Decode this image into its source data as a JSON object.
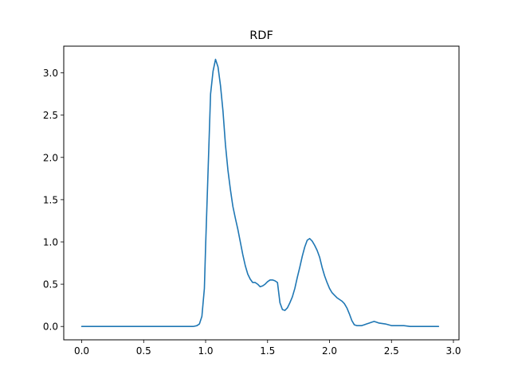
{
  "chart_data": {
    "type": "line",
    "title": "RDF",
    "xlabel": "",
    "ylabel": "",
    "xlim": [
      -0.145,
      3.045
    ],
    "ylim": [
      -0.158,
      3.316
    ],
    "xticks": [
      0.0,
      0.5,
      1.0,
      1.5,
      2.0,
      2.5,
      3.0
    ],
    "xtick_labels": [
      "0.0",
      "0.5",
      "1.0",
      "1.5",
      "2.0",
      "2.5",
      "3.0"
    ],
    "yticks": [
      0.0,
      0.5,
      1.0,
      1.5,
      2.0,
      2.5,
      3.0
    ],
    "ytick_labels": [
      "0.0",
      "0.5",
      "1.0",
      "1.5",
      "2.0",
      "2.5",
      "3.0"
    ],
    "grid": false,
    "legend": "none",
    "series": [
      {
        "color": "#1f77b4",
        "x": [
          0.0,
          0.2,
          0.4,
          0.6,
          0.8,
          0.9,
          0.93,
          0.95,
          0.97,
          0.99,
          1.0,
          1.02,
          1.04,
          1.06,
          1.08,
          1.1,
          1.12,
          1.14,
          1.16,
          1.18,
          1.2,
          1.22,
          1.24,
          1.26,
          1.28,
          1.3,
          1.32,
          1.34,
          1.36,
          1.38,
          1.4,
          1.42,
          1.44,
          1.46,
          1.48,
          1.5,
          1.52,
          1.54,
          1.56,
          1.58,
          1.6,
          1.62,
          1.64,
          1.66,
          1.68,
          1.7,
          1.72,
          1.74,
          1.76,
          1.78,
          1.8,
          1.82,
          1.84,
          1.86,
          1.88,
          1.9,
          1.92,
          1.94,
          1.96,
          1.98,
          2.0,
          2.02,
          2.04,
          2.06,
          2.08,
          2.1,
          2.12,
          2.14,
          2.16,
          2.18,
          2.2,
          2.22,
          2.24,
          2.26,
          2.28,
          2.3,
          2.32,
          2.34,
          2.36,
          2.38,
          2.4,
          2.45,
          2.5,
          2.55,
          2.6,
          2.65,
          2.7,
          2.75,
          2.8,
          2.85,
          2.88
        ],
        "y": [
          0.0,
          0.0,
          0.0,
          0.0,
          0.0,
          0.0,
          0.01,
          0.03,
          0.12,
          0.45,
          0.95,
          1.85,
          2.75,
          3.02,
          3.16,
          3.07,
          2.85,
          2.55,
          2.15,
          1.85,
          1.62,
          1.42,
          1.28,
          1.15,
          1.0,
          0.85,
          0.72,
          0.62,
          0.56,
          0.52,
          0.52,
          0.5,
          0.47,
          0.48,
          0.5,
          0.53,
          0.55,
          0.55,
          0.54,
          0.52,
          0.28,
          0.2,
          0.19,
          0.22,
          0.28,
          0.35,
          0.45,
          0.58,
          0.7,
          0.83,
          0.94,
          1.02,
          1.04,
          1.01,
          0.96,
          0.9,
          0.82,
          0.7,
          0.6,
          0.52,
          0.45,
          0.4,
          0.37,
          0.34,
          0.32,
          0.3,
          0.27,
          0.22,
          0.15,
          0.07,
          0.02,
          0.01,
          0.01,
          0.01,
          0.02,
          0.03,
          0.04,
          0.05,
          0.06,
          0.05,
          0.04,
          0.03,
          0.01,
          0.01,
          0.01,
          0.0,
          0.0,
          0.0,
          0.0,
          0.0,
          0.0
        ]
      }
    ]
  }
}
